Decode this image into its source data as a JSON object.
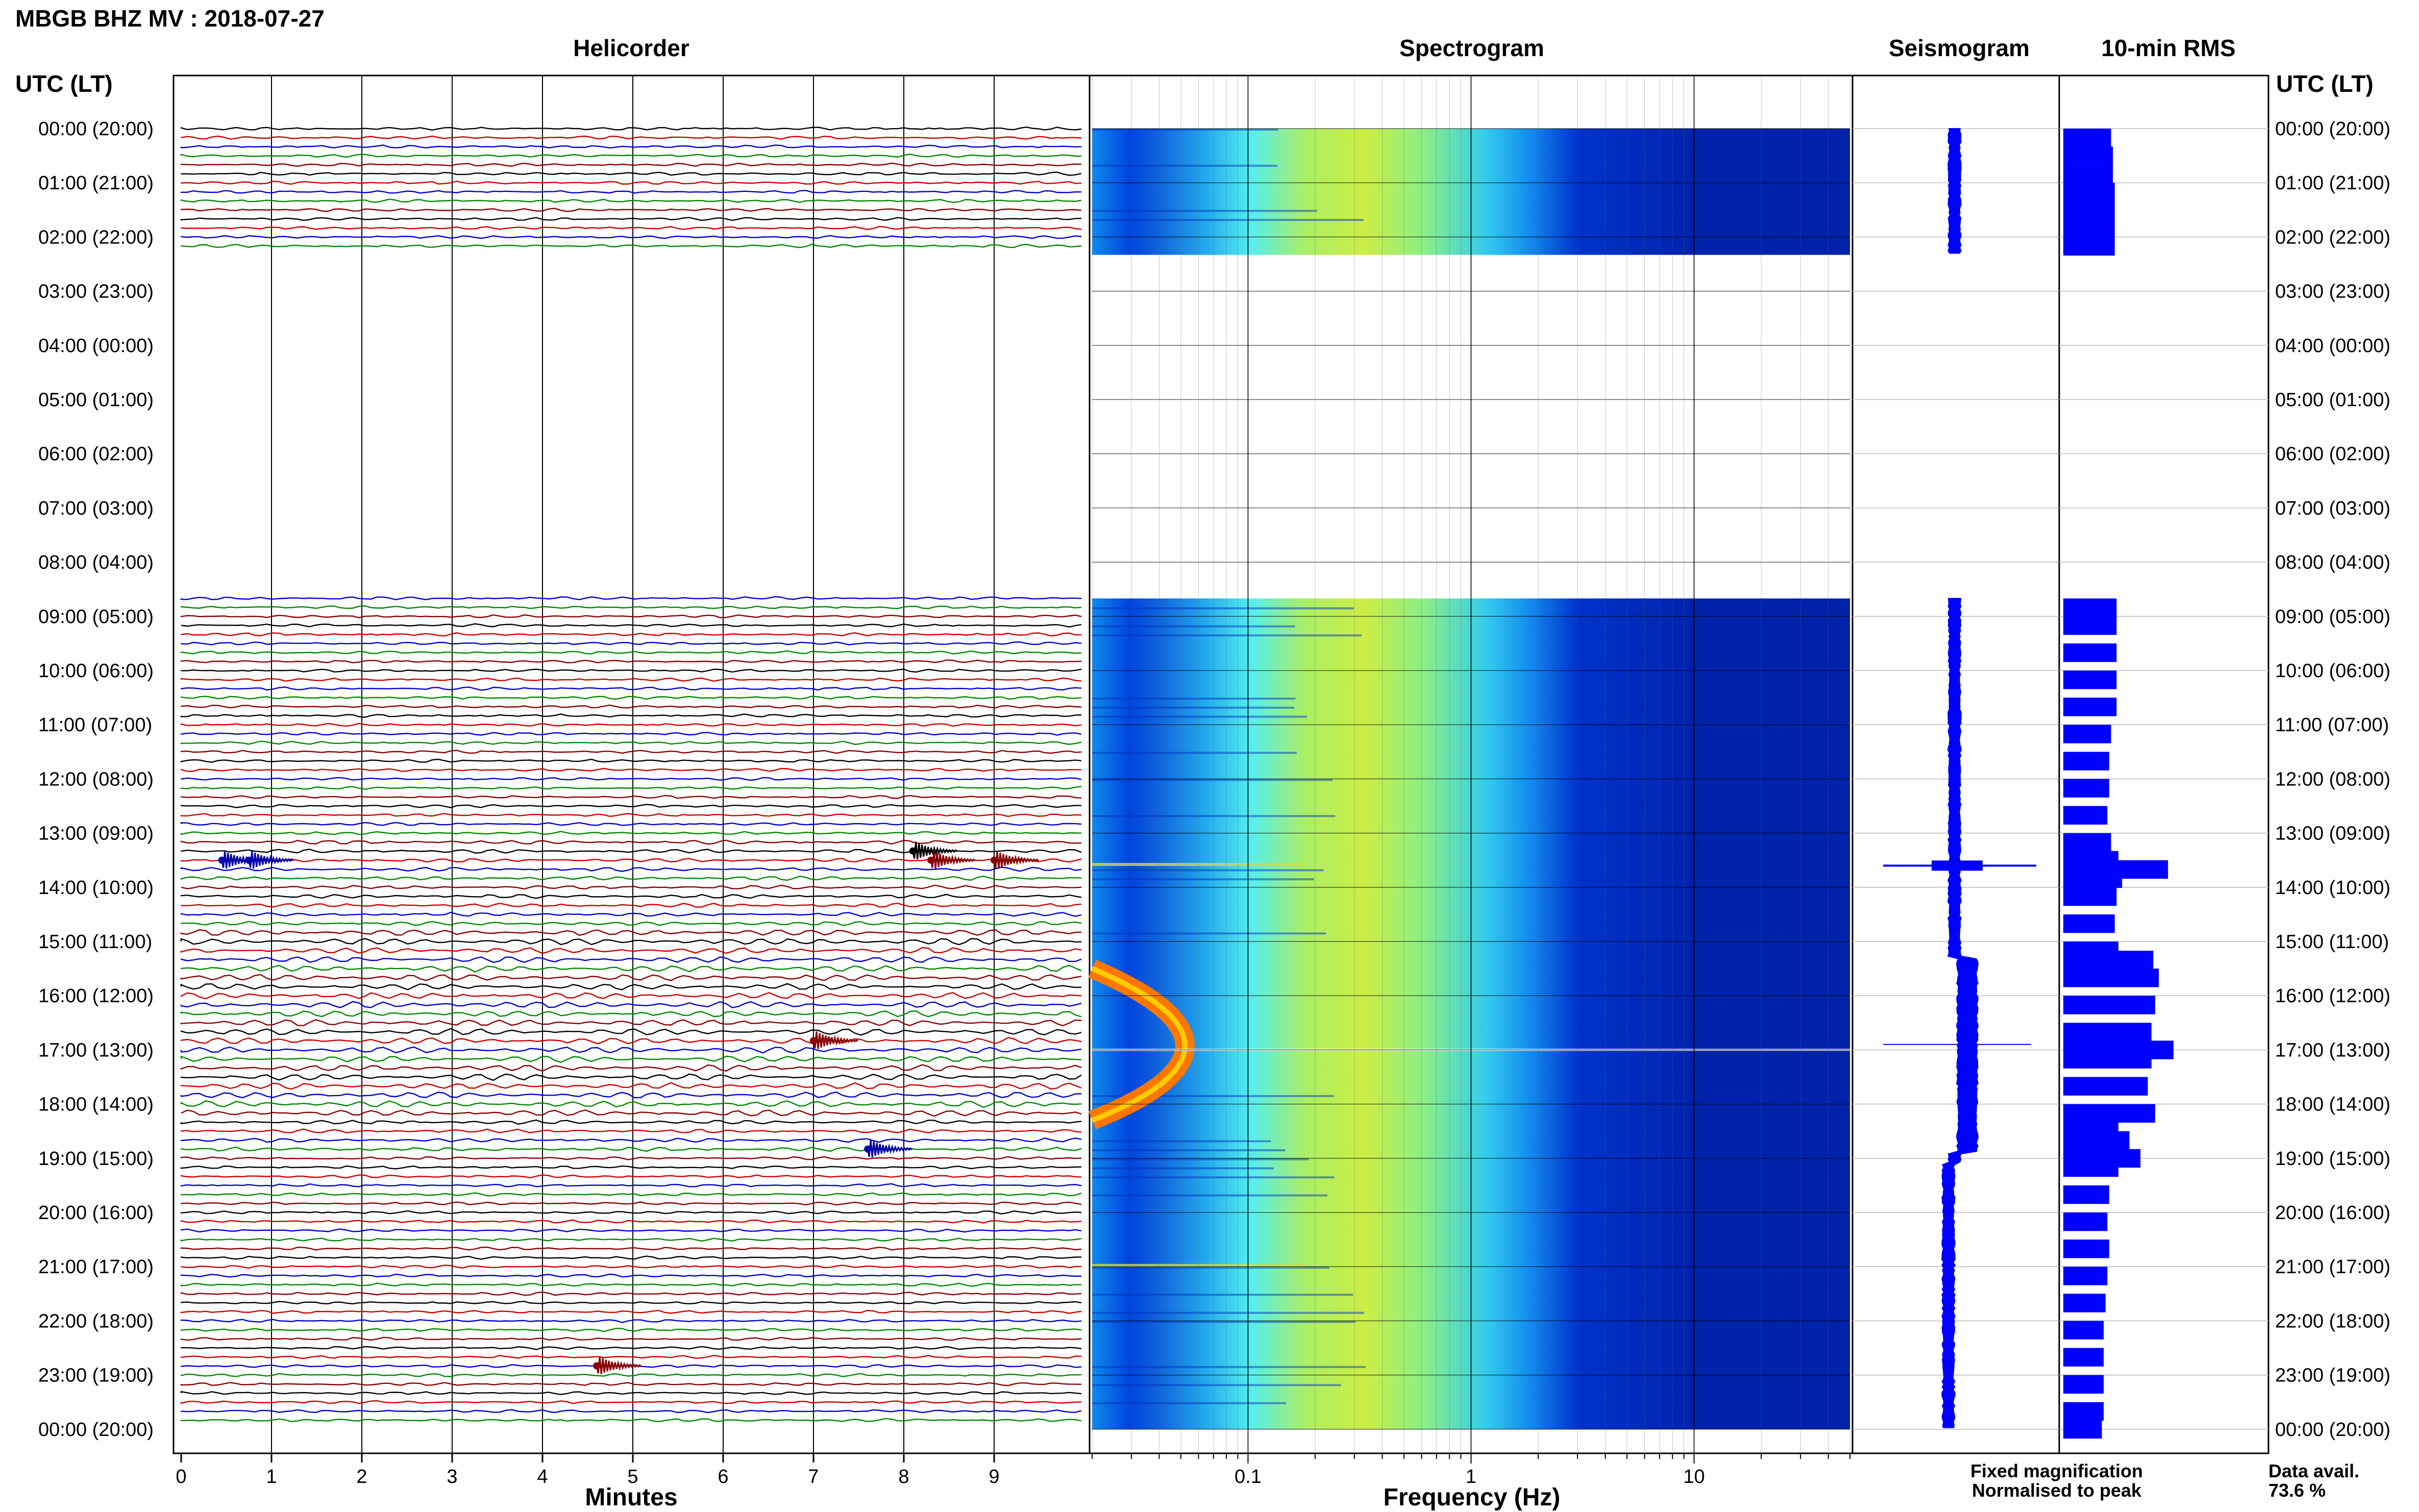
{
  "header": {
    "title": "MBGB BHZ MV : 2018-07-27",
    "utc_label_left": "UTC (LT)",
    "utc_label_right": "UTC (LT)"
  },
  "panels": {
    "helicorder": "Helicorder",
    "spectrogram": "Spectrogram",
    "seismogram": "Seismogram",
    "rms": "10-min RMS"
  },
  "time_labels": [
    "00:00 (20:00)",
    "01:00 (21:00)",
    "02:00 (22:00)",
    "03:00 (23:00)",
    "04:00 (00:00)",
    "05:00 (01:00)",
    "06:00 (02:00)",
    "07:00 (03:00)",
    "08:00 (04:00)",
    "09:00 (05:00)",
    "10:00 (06:00)",
    "11:00 (07:00)",
    "12:00 (08:00)",
    "13:00 (09:00)",
    "14:00 (10:00)",
    "15:00 (11:00)",
    "16:00 (12:00)",
    "17:00 (13:00)",
    "18:00 (14:00)",
    "19:00 (15:00)",
    "20:00 (16:00)",
    "21:00 (17:00)",
    "22:00 (18:00)",
    "23:00 (19:00)",
    "00:00 (20:00)"
  ],
  "legend": {
    "fixed": "Fixed magnification",
    "normalised": "Normalised to peak",
    "fixed_color": "#0000ff",
    "normalised_color": "#ff0000"
  },
  "availability": {
    "label": "Data avail.",
    "value": "73.6 %"
  },
  "chart_data": [
    {
      "type": "line",
      "name": "helicorder",
      "title": "Helicorder",
      "xlabel": "Minutes",
      "xlim": [
        0,
        10
      ],
      "x_ticks": [
        "0",
        "1",
        "2",
        "3",
        "4",
        "5",
        "6",
        "7",
        "8",
        "9"
      ],
      "trace_colors": [
        "#000000",
        "#cc0000",
        "#0000cc",
        "#008800",
        "#880000"
      ],
      "data_segments_utc_hours": [
        [
          0.0,
          2.33
        ],
        [
          8.67,
          24.0
        ]
      ],
      "events": [
        {
          "hour": 13.5,
          "minute": 0.45,
          "color": "#0000aa"
        },
        {
          "hour": 13.5,
          "minute": 0.75,
          "color": "#0000aa"
        },
        {
          "hour": 13.33,
          "minute": 8.1,
          "color": "#000000"
        },
        {
          "hour": 13.5,
          "minute": 8.3,
          "color": "#880000"
        },
        {
          "hour": 13.5,
          "minute": 9.0,
          "color": "#880000"
        },
        {
          "hour": 16.83,
          "minute": 7.0,
          "color": "#880000"
        },
        {
          "hour": 18.83,
          "minute": 7.6,
          "color": "#0000aa"
        },
        {
          "hour": 22.83,
          "minute": 4.6,
          "color": "#880000"
        }
      ]
    },
    {
      "type": "heatmap",
      "name": "spectrogram",
      "title": "Spectrogram",
      "xlabel": "Frequency (Hz)",
      "x_scale": "log",
      "xlim": [
        0.02,
        50
      ],
      "x_ticks": [
        "0.1",
        "1",
        "10"
      ],
      "data_segments_utc_hours": [
        [
          0.0,
          2.33
        ],
        [
          8.67,
          24.0
        ]
      ],
      "microseism_band_hz": [
        0.2,
        0.6
      ]
    },
    {
      "type": "line",
      "name": "seismogram",
      "title": "Seismogram",
      "data_segments_utc_hours": [
        [
          0.0,
          2.33
        ],
        [
          8.67,
          24.0
        ]
      ],
      "spikes_utc_hours": [
        13.6,
        16.9
      ]
    },
    {
      "type": "bar",
      "name": "rms",
      "title": "10-min RMS",
      "bar_width_hours": 0.1667,
      "values": [
        {
          "h": 0.0,
          "v": 2.6
        },
        {
          "h": 0.33,
          "v": 2.7
        },
        {
          "h": 0.67,
          "v": 2.7
        },
        {
          "h": 1.0,
          "v": 2.8
        },
        {
          "h": 1.33,
          "v": 2.8
        },
        {
          "h": 1.67,
          "v": 2.8
        },
        {
          "h": 2.0,
          "v": 2.8
        },
        {
          "h": 8.67,
          "v": 2.9
        },
        {
          "h": 9.0,
          "v": 2.9
        },
        {
          "h": 9.5,
          "v": 2.9
        },
        {
          "h": 10.0,
          "v": 2.9
        },
        {
          "h": 10.5,
          "v": 2.9
        },
        {
          "h": 11.0,
          "v": 2.6
        },
        {
          "h": 11.5,
          "v": 2.5
        },
        {
          "h": 12.0,
          "v": 2.5
        },
        {
          "h": 12.5,
          "v": 2.4
        },
        {
          "h": 13.0,
          "v": 2.6
        },
        {
          "h": 13.33,
          "v": 3.0
        },
        {
          "h": 13.5,
          "v": 5.7
        },
        {
          "h": 13.67,
          "v": 3.2
        },
        {
          "h": 14.0,
          "v": 2.9
        },
        {
          "h": 14.5,
          "v": 2.8
        },
        {
          "h": 15.0,
          "v": 3.0
        },
        {
          "h": 15.17,
          "v": 4.9
        },
        {
          "h": 15.5,
          "v": 5.2
        },
        {
          "h": 16.0,
          "v": 5.0
        },
        {
          "h": 16.5,
          "v": 4.8
        },
        {
          "h": 16.83,
          "v": 6.0
        },
        {
          "h": 17.0,
          "v": 4.8
        },
        {
          "h": 17.5,
          "v": 4.6
        },
        {
          "h": 18.0,
          "v": 5.0
        },
        {
          "h": 18.17,
          "v": 3.0
        },
        {
          "h": 18.5,
          "v": 3.6
        },
        {
          "h": 18.83,
          "v": 4.2
        },
        {
          "h": 19.0,
          "v": 3.0
        },
        {
          "h": 19.5,
          "v": 2.5
        },
        {
          "h": 20.0,
          "v": 2.4
        },
        {
          "h": 20.5,
          "v": 2.5
        },
        {
          "h": 21.0,
          "v": 2.4
        },
        {
          "h": 21.5,
          "v": 2.3
        },
        {
          "h": 22.0,
          "v": 2.2
        },
        {
          "h": 22.5,
          "v": 2.2
        },
        {
          "h": 23.0,
          "v": 2.2
        },
        {
          "h": 23.5,
          "v": 2.2
        },
        {
          "h": 23.83,
          "v": 2.1
        }
      ]
    }
  ]
}
